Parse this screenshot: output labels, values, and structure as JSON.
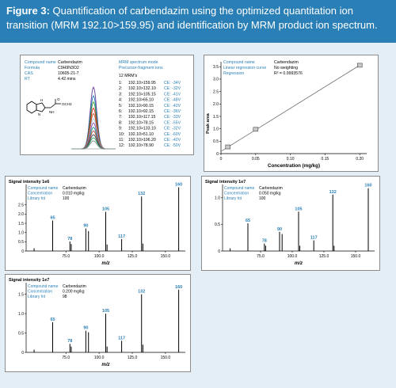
{
  "header": {
    "fig_label": "Figure 3:",
    "title": "Quantification of carbendazim using the optimized quantitation ion transition (MRM 192.10>159.95) and identification by MRM product ion spectrum."
  },
  "info_panel": {
    "compound": {
      "label": "Compound name",
      "value": "Carbendazim"
    },
    "formula": {
      "label": "Formula",
      "value": "C9H9N3O2"
    },
    "cas": {
      "label": "CAS",
      "value": "10605-21-7"
    },
    "rt": {
      "label": "RT",
      "value": "4.42 mins"
    },
    "structure_label": "OCH3",
    "mrm_mode": "MRM spectrum mode",
    "precursor": "Precursor-fragment ions",
    "count": "12 MRM's",
    "mrm_list": [
      {
        "idx": "1:",
        "ion": "192.10>159.95",
        "ce": "CE: -34V"
      },
      {
        "idx": "2:",
        "ion": "192.10>132.10",
        "ce": "CE: -32V"
      },
      {
        "idx": "3:",
        "ion": "192.10>105.15",
        "ce": "CE: -41V"
      },
      {
        "idx": "4:",
        "ion": "192.10>65.10",
        "ce": "CE: -48V"
      },
      {
        "idx": "5:",
        "ion": "192.10>90.15",
        "ce": "CE: -42V"
      },
      {
        "idx": "6:",
        "ion": "192.10>92.15",
        "ce": "CE: -36V"
      },
      {
        "idx": "7:",
        "ion": "192.10>117.15",
        "ce": "CE: -33V"
      },
      {
        "idx": "8:",
        "ion": "192.10>78.15",
        "ce": "CE: -55V"
      },
      {
        "idx": "9:",
        "ion": "192.10>133.10",
        "ce": "CE: -32V"
      },
      {
        "idx": "10:",
        "ion": "192.10>51.10",
        "ce": "CE: -60V"
      },
      {
        "idx": "11:",
        "ion": "192.10>106.20",
        "ce": "CE: -42V"
      },
      {
        "idx": "12:",
        "ion": "192.10>78.90",
        "ce": "CE: -50V"
      }
    ]
  },
  "calib_panel": {
    "compound": {
      "label": "Compound name",
      "value": "Carbendazim"
    },
    "curve": {
      "label": "Linear regression curve",
      "value": "No weighting"
    },
    "regression": {
      "label": "Regression",
      "value": "R² = 0.9993576"
    }
  },
  "colors": {
    "header_bg": "#2a7fb6",
    "panel_bg": "#e4eef6",
    "label_blue": "#2a7fb6",
    "bar_black": "#000000",
    "calib_line": "#707070"
  },
  "chart_data": [
    {
      "type": "line",
      "id": "mrm-overlay",
      "x": [
        4.3,
        4.34,
        4.38,
        4.4,
        4.42,
        4.44,
        4.46,
        4.5,
        4.54
      ],
      "series_colors": [
        "#6a3d9a",
        "#1f78b4",
        "#33a02c",
        "#e31a1c",
        "#b15928",
        "#a6cee3",
        "#8e44ad",
        "#16a085",
        "#c0392b",
        "#2c3e50",
        "#27ae60",
        "#7f8c8d"
      ],
      "peak_heights": [
        1.0,
        0.86,
        0.76,
        0.66,
        0.57,
        0.49,
        0.42,
        0.35,
        0.29,
        0.23,
        0.18,
        0.13
      ]
    },
    {
      "type": "scatter",
      "id": "calibration",
      "xlabel": "Concentration (mg/kg)",
      "ylabel": "Peak area",
      "xlim": [
        0,
        0.21
      ],
      "ylim": [
        0,
        3.7
      ],
      "xticks": [
        0,
        0.05,
        0.1,
        0.15,
        0.2
      ],
      "xtick_labels": [
        "0",
        "0.05",
        "0.10",
        "0.15",
        "0.20"
      ],
      "yticks": [
        0,
        0.5,
        1.0,
        1.5,
        2.0,
        2.5,
        3.0,
        3.5
      ],
      "ytick_labels": [
        "0",
        "0.5",
        "1.0",
        "1.5",
        "2.0",
        "2.5",
        "3.0",
        "3.5"
      ],
      "x": [
        0.01,
        0.05,
        0.2
      ],
      "y": [
        0.27,
        0.98,
        3.56
      ],
      "fit": {
        "x": [
          0,
          0.2
        ],
        "y": [
          0.09,
          3.56
        ]
      }
    },
    {
      "type": "bar",
      "id": "spectrum-1",
      "signal_title": "Signal intensity 1e6",
      "compound": {
        "label": "Compound name",
        "value": "Carbendazim"
      },
      "concentration": {
        "label": "Concentration",
        "value": "0.010 mg/kg"
      },
      "library": {
        "label": "Library hit",
        "value": "100"
      },
      "xlabel": "m/z",
      "xlim": [
        45,
        165
      ],
      "ylim": [
        0,
        3.6
      ],
      "xticks": [
        75,
        100,
        125,
        150
      ],
      "xtick_labels": [
        "75.0",
        "100.0",
        "125.0",
        "150.0"
      ],
      "yticks": [
        0,
        0.5,
        1.0,
        1.5,
        2.0,
        2.5
      ],
      "ytick_labels": [
        "0",
        "0.5",
        "1.0",
        "1.5",
        "2.0",
        "2.5"
      ],
      "peaks": [
        {
          "mz": 51,
          "intensity": 0.15,
          "label": ""
        },
        {
          "mz": 65,
          "intensity": 1.65,
          "label": "65"
        },
        {
          "mz": 78,
          "intensity": 0.52,
          "label": "78"
        },
        {
          "mz": 79,
          "intensity": 0.38,
          "label": ""
        },
        {
          "mz": 90,
          "intensity": 1.22,
          "label": "90"
        },
        {
          "mz": 92,
          "intensity": 1.08,
          "label": ""
        },
        {
          "mz": 105,
          "intensity": 2.12,
          "label": "105"
        },
        {
          "mz": 106,
          "intensity": 0.35,
          "label": ""
        },
        {
          "mz": 117,
          "intensity": 0.65,
          "label": "117"
        },
        {
          "mz": 132,
          "intensity": 2.95,
          "label": "132"
        },
        {
          "mz": 133,
          "intensity": 0.4,
          "label": ""
        },
        {
          "mz": 160,
          "intensity": 3.45,
          "label": "160"
        }
      ]
    },
    {
      "type": "bar",
      "id": "spectrum-2",
      "signal_title": "Signal intensity 1e7",
      "compound": {
        "label": "Compound name",
        "value": "Carbendazim"
      },
      "concentration": {
        "label": "Concentration",
        "value": "0.050 mg/kg"
      },
      "library": {
        "label": "Library hit",
        "value": "100"
      },
      "xlabel": "m/z",
      "xlim": [
        45,
        165
      ],
      "ylim": [
        0,
        1.25
      ],
      "xticks": [
        75,
        100,
        125,
        150
      ],
      "xtick_labels": [
        "75.0",
        "100.0",
        "125.0",
        "150.0"
      ],
      "yticks": [
        0,
        0.5,
        1.0
      ],
      "ytick_labels": [
        "0",
        "0.5",
        "1.0"
      ],
      "peaks": [
        {
          "mz": 51,
          "intensity": 0.05,
          "label": ""
        },
        {
          "mz": 65,
          "intensity": 0.52,
          "label": "65"
        },
        {
          "mz": 78,
          "intensity": 0.14,
          "label": "78"
        },
        {
          "mz": 79,
          "intensity": 0.1,
          "label": ""
        },
        {
          "mz": 90,
          "intensity": 0.36,
          "label": "90"
        },
        {
          "mz": 92,
          "intensity": 0.32,
          "label": ""
        },
        {
          "mz": 105,
          "intensity": 0.74,
          "label": "105"
        },
        {
          "mz": 106,
          "intensity": 0.1,
          "label": ""
        },
        {
          "mz": 117,
          "intensity": 0.2,
          "label": "117"
        },
        {
          "mz": 132,
          "intensity": 1.06,
          "label": "132"
        },
        {
          "mz": 133,
          "intensity": 0.1,
          "label": ""
        },
        {
          "mz": 160,
          "intensity": 1.18,
          "label": "160"
        }
      ]
    },
    {
      "type": "bar",
      "id": "spectrum-3",
      "signal_title": "Signal intensity 1e7",
      "compound": {
        "label": "Compound name",
        "value": "Carbendazim"
      },
      "concentration": {
        "label": "Concentration",
        "value": "0.200 mg/kg"
      },
      "library": {
        "label": "Library hit",
        "value": "98"
      },
      "xlabel": "m/z",
      "xlim": [
        45,
        165
      ],
      "ylim": [
        0,
        1.8
      ],
      "xticks": [
        75,
        100,
        125,
        150
      ],
      "xtick_labels": [
        "75.0",
        "100.0",
        "125.0",
        "150.0"
      ],
      "yticks": [
        0,
        0.5,
        1.0,
        1.5
      ],
      "ytick_labels": [
        "0",
        "0.5",
        "1.0",
        "1.5"
      ],
      "peaks": [
        {
          "mz": 51,
          "intensity": 0.07,
          "label": ""
        },
        {
          "mz": 65,
          "intensity": 0.78,
          "label": "65"
        },
        {
          "mz": 78,
          "intensity": 0.22,
          "label": "78"
        },
        {
          "mz": 79,
          "intensity": 0.15,
          "label": ""
        },
        {
          "mz": 90,
          "intensity": 0.56,
          "label": "90"
        },
        {
          "mz": 92,
          "intensity": 0.52,
          "label": ""
        },
        {
          "mz": 105,
          "intensity": 1.0,
          "label": "105"
        },
        {
          "mz": 106,
          "intensity": 0.15,
          "label": ""
        },
        {
          "mz": 117,
          "intensity": 0.3,
          "label": "117"
        },
        {
          "mz": 132,
          "intensity": 1.5,
          "label": "132"
        },
        {
          "mz": 133,
          "intensity": 0.2,
          "label": ""
        },
        {
          "mz": 160,
          "intensity": 1.62,
          "label": "160"
        }
      ]
    }
  ]
}
